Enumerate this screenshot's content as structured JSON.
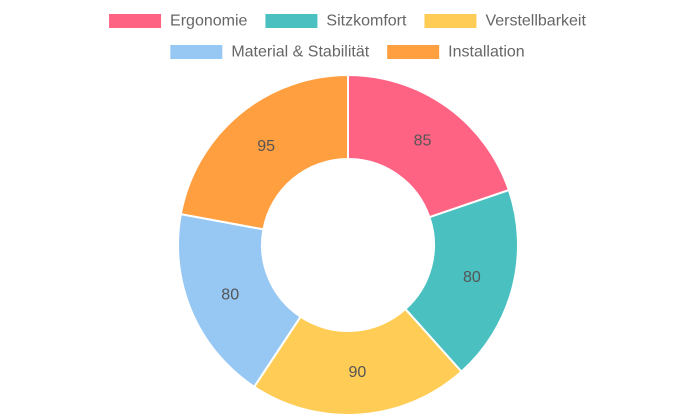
{
  "chart_data": {
    "type": "doughnut",
    "categories": [
      "Ergonomie",
      "Sitzkomfort",
      "Verstellbarkeit",
      "Material & Stabilität",
      "Installation"
    ],
    "values": [
      85,
      80,
      90,
      80,
      95
    ],
    "colors": [
      "#ff6384",
      "#4bc0c0",
      "#ffcd56",
      "#97c8f4",
      "#ff9f40"
    ],
    "legend_position": "top"
  }
}
